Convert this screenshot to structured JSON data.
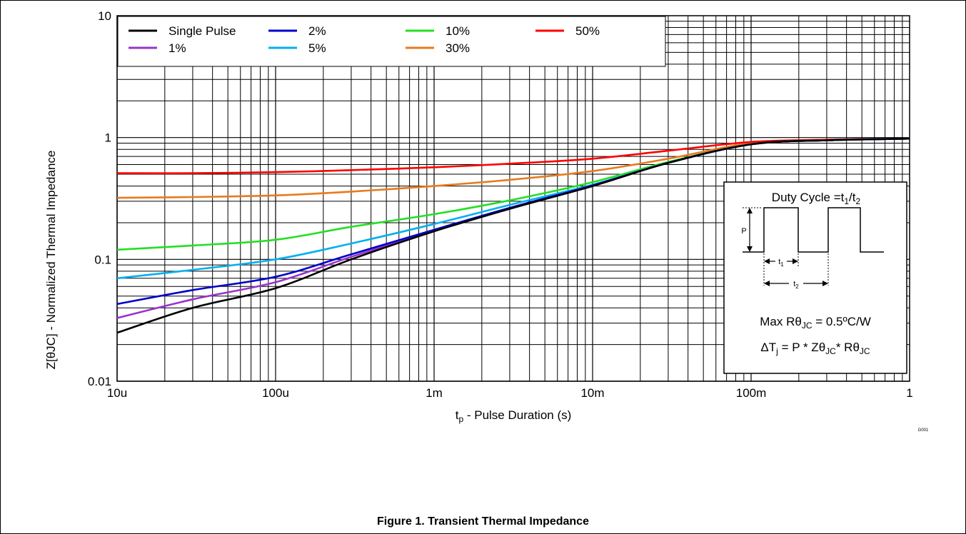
{
  "figure_caption": "Figure 1.  Transient Thermal Impedance",
  "graph_id": "G001",
  "chart_data": {
    "type": "line",
    "xlabel_main": "t",
    "xlabel_sub": "p",
    "xlabel_rest": " - Pulse Duration (s)",
    "ylabel": "Z[θJC] - Normalized Thermal Impedance",
    "x_scale": "log",
    "y_scale": "log",
    "xlim": [
      1e-05,
      1
    ],
    "ylim": [
      0.01,
      10
    ],
    "grid": true,
    "legend_position": "top-left",
    "x_ticks": [
      {
        "value": 1e-05,
        "label": "10u"
      },
      {
        "value": 0.0001,
        "label": "100u"
      },
      {
        "value": 0.001,
        "label": "1m"
      },
      {
        "value": 0.01,
        "label": "10m"
      },
      {
        "value": 0.1,
        "label": "100m"
      },
      {
        "value": 1,
        "label": "1"
      }
    ],
    "y_ticks": [
      {
        "value": 0.01,
        "label": "0.01"
      },
      {
        "value": 0.1,
        "label": "0.1"
      },
      {
        "value": 1,
        "label": "1"
      },
      {
        "value": 10,
        "label": "10"
      }
    ],
    "series": [
      {
        "name": "Single Pulse",
        "color": "#000000",
        "x": [
          1e-05,
          3e-05,
          0.0001,
          0.0003,
          0.001,
          0.003,
          0.01,
          0.03,
          0.1,
          0.3,
          1
        ],
        "y": [
          0.025,
          0.04,
          0.058,
          0.1,
          0.17,
          0.26,
          0.4,
          0.62,
          0.88,
          0.95,
          0.98
        ]
      },
      {
        "name": "1%",
        "color": "#9933cc",
        "x": [
          1e-05,
          3e-05,
          0.0001,
          0.0003,
          0.001,
          0.003,
          0.01,
          0.03,
          0.1,
          0.3,
          1
        ],
        "y": [
          0.033,
          0.047,
          0.065,
          0.105,
          0.172,
          0.262,
          0.4,
          0.62,
          0.88,
          0.95,
          0.98
        ]
      },
      {
        "name": "2%",
        "color": "#0000cc",
        "x": [
          1e-05,
          3e-05,
          0.0001,
          0.0003,
          0.001,
          0.003,
          0.01,
          0.03,
          0.1,
          0.3,
          1
        ],
        "y": [
          0.043,
          0.056,
          0.072,
          0.11,
          0.175,
          0.265,
          0.405,
          0.62,
          0.88,
          0.95,
          0.98
        ]
      },
      {
        "name": "5%",
        "color": "#00b0f0",
        "x": [
          1e-05,
          3e-05,
          0.0001,
          0.0003,
          0.001,
          0.003,
          0.01,
          0.03,
          0.1,
          0.3,
          1
        ],
        "y": [
          0.07,
          0.082,
          0.1,
          0.135,
          0.195,
          0.28,
          0.41,
          0.62,
          0.88,
          0.95,
          0.98
        ]
      },
      {
        "name": "10%",
        "color": "#22e022",
        "x": [
          1e-05,
          3e-05,
          0.0001,
          0.0003,
          0.001,
          0.003,
          0.01,
          0.03,
          0.1,
          0.3,
          1
        ],
        "y": [
          0.12,
          0.13,
          0.145,
          0.185,
          0.235,
          0.305,
          0.43,
          0.63,
          0.88,
          0.95,
          0.98
        ]
      },
      {
        "name": "30%",
        "color": "#e87a1e",
        "x": [
          1e-05,
          3e-05,
          0.0001,
          0.0003,
          0.001,
          0.003,
          0.01,
          0.03,
          0.1,
          0.3,
          1
        ],
        "y": [
          0.32,
          0.325,
          0.335,
          0.36,
          0.4,
          0.45,
          0.53,
          0.67,
          0.9,
          0.95,
          0.98
        ]
      },
      {
        "name": "50%",
        "color": "#ff0000",
        "x": [
          1e-05,
          3e-05,
          0.0001,
          0.0003,
          0.001,
          0.003,
          0.01,
          0.03,
          0.1,
          0.3,
          1
        ],
        "y": [
          0.51,
          0.51,
          0.52,
          0.54,
          0.57,
          0.61,
          0.67,
          0.78,
          0.92,
          0.96,
          0.98
        ]
      }
    ],
    "legend_order": [
      "Single Pulse",
      "2%",
      "10%",
      "50%",
      "1%",
      "5%",
      "30%"
    ]
  },
  "inset": {
    "duty_cycle_label": "Duty Cycle =t",
    "duty_sub1": "1",
    "duty_slash": "/t",
    "duty_sub2": "2",
    "p_label": "P",
    "t1_main": "t",
    "t1_sub": "1",
    "t2_main": "t",
    "t2_sub": "2",
    "max_r_label": "Max Rθ",
    "max_r_sub": "JC",
    "max_r_value": " = 0.5ºC/W",
    "dt_label": "ΔT",
    "dt_sub": "j",
    "dt_mid": " = P * Zθ",
    "dt_sub2": "JC",
    "dt_mid2": "* Rθ",
    "dt_sub3": "JC"
  }
}
